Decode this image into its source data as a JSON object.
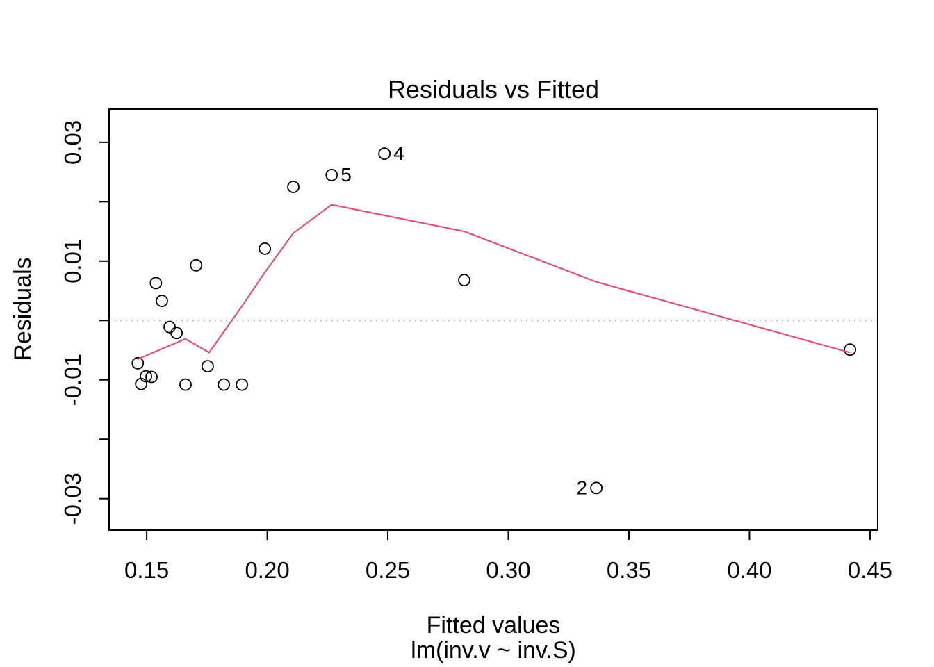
{
  "figure": {
    "background": "#ffffff",
    "frame_color": "#000000"
  },
  "chart_data": {
    "type": "scatter",
    "title": "Residuals vs Fitted",
    "xlabel": "Fitted values",
    "sublabel": "lm(inv.v ~ inv.S)",
    "ylabel": "Residuals",
    "xlim": [
      0.1344,
      0.4532
    ],
    "ylim": [
      -0.0353,
      0.0356
    ],
    "grid": false,
    "legend": null,
    "x_ticks": [
      {
        "v": 0.15,
        "label": "0.15"
      },
      {
        "v": 0.2,
        "label": "0.20"
      },
      {
        "v": 0.25,
        "label": "0.25"
      },
      {
        "v": 0.3,
        "label": "0.30"
      },
      {
        "v": 0.35,
        "label": "0.35"
      },
      {
        "v": 0.4,
        "label": "0.40"
      },
      {
        "v": 0.45,
        "label": "0.45"
      }
    ],
    "y_ticks": [
      {
        "v": 0.03,
        "label": "0.03"
      },
      {
        "v": 0.02,
        "label": ""
      },
      {
        "v": 0.01,
        "label": "0.01"
      },
      {
        "v": 0.0,
        "label": ""
      },
      {
        "v": -0.01,
        "label": "-0.01"
      },
      {
        "v": -0.02,
        "label": ""
      },
      {
        "v": -0.03,
        "label": "-0.03"
      }
    ],
    "zero_line": {
      "y": 0,
      "color": "#BEBEBE",
      "style": "dotted"
    },
    "point_style": {
      "shape": "open-circle",
      "color": "#000000",
      "radius": 8,
      "stroke_width": 1.8
    },
    "points": [
      {
        "x": 0.1463,
        "y": -0.0072
      },
      {
        "x": 0.1477,
        "y": -0.0107
      },
      {
        "x": 0.1497,
        "y": -0.0094
      },
      {
        "x": 0.152,
        "y": -0.0095
      },
      {
        "x": 0.1538,
        "y": 0.0063
      },
      {
        "x": 0.1563,
        "y": 0.0033
      },
      {
        "x": 0.1595,
        "y": -0.0011
      },
      {
        "x": 0.1624,
        "y": -0.0021
      },
      {
        "x": 0.1661,
        "y": -0.0108
      },
      {
        "x": 0.1705,
        "y": 0.0093
      },
      {
        "x": 0.1753,
        "y": -0.0077
      },
      {
        "x": 0.182,
        "y": -0.0108
      },
      {
        "x": 0.1895,
        "y": -0.0108
      },
      {
        "x": 0.199,
        "y": 0.0121
      },
      {
        "x": 0.2108,
        "y": 0.0225
      },
      {
        "x": 0.2267,
        "y": 0.0245,
        "label": "5",
        "label_side": "right"
      },
      {
        "x": 0.2486,
        "y": 0.0281,
        "label": "4",
        "label_side": "right"
      },
      {
        "x": 0.2817,
        "y": 0.0068
      },
      {
        "x": 0.3365,
        "y": -0.0282,
        "label": "2",
        "label_side": "left"
      },
      {
        "x": 0.4417,
        "y": -0.0049
      }
    ],
    "smooth_line": {
      "name": "lowess-smooth",
      "color": "#DF536B",
      "stroke_width": 2.2,
      "points": [
        [
          0.1463,
          -0.0065
        ],
        [
          0.1661,
          -0.0031
        ],
        [
          0.1759,
          -0.0054
        ],
        [
          0.182,
          -0.0019
        ],
        [
          0.1895,
          0.0024
        ],
        [
          0.199,
          0.0081
        ],
        [
          0.2108,
          0.0147
        ],
        [
          0.2267,
          0.0195
        ],
        [
          0.2817,
          0.015
        ],
        [
          0.3365,
          0.0065
        ],
        [
          0.4417,
          -0.0054
        ]
      ]
    }
  }
}
